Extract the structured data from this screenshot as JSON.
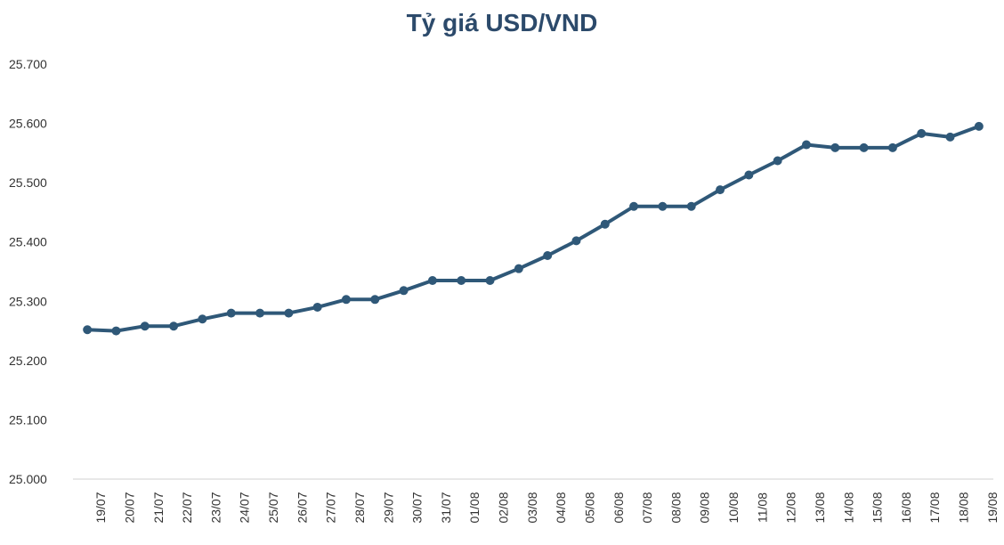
{
  "chart_data": {
    "type": "line",
    "title": "Tỷ giá USD/VND",
    "xlabel": "",
    "ylabel": "",
    "ylim": [
      25000,
      25700
    ],
    "yticks": [
      25000,
      25100,
      25200,
      25300,
      25400,
      25500,
      25600,
      25700
    ],
    "ytick_labels": [
      "25.000",
      "25.100",
      "25.200",
      "25.300",
      "25.400",
      "25.500",
      "25.600",
      "25.700"
    ],
    "grid": false,
    "legend": "none",
    "color": "#2f5878",
    "categories": [
      "19/07",
      "20/07",
      "21/07",
      "22/07",
      "23/07",
      "24/07",
      "25/07",
      "26/07",
      "27/07",
      "28/07",
      "29/07",
      "30/07",
      "31/07",
      "01/08",
      "02/08",
      "03/08",
      "04/08",
      "05/08",
      "06/08",
      "07/08",
      "08/08",
      "09/08",
      "10/08",
      "11/08",
      "12/08",
      "13/08",
      "14/08",
      "15/08",
      "16/08",
      "17/08",
      "18/08",
      "19/08"
    ],
    "series": [
      {
        "values": [
          25252,
          25250,
          25258,
          25258,
          25270,
          25280,
          25280,
          25280,
          25290,
          25303,
          25303,
          25318,
          25335,
          25335,
          25335,
          25355,
          25377,
          25402,
          25430,
          25460,
          25460,
          25460,
          25488,
          25513,
          25537,
          25564,
          25559,
          25559,
          25559,
          25583,
          25577,
          25595
        ]
      }
    ]
  }
}
